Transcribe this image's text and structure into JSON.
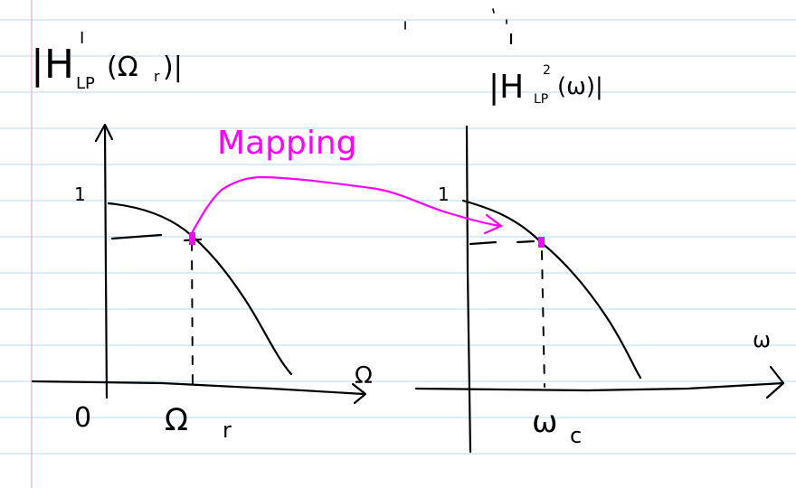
{
  "left_plot": {
    "y_label": "|H",
    "y_label_sup": "I",
    "y_label_sub": "LP",
    "y_label_arg": "(Ω",
    "y_label_arg_sub": "r",
    "y_label_close": ")|",
    "x_label": "Ω",
    "origin_label": "0",
    "y_tick_label": "1",
    "cutoff_label": "Ω",
    "cutoff_label_sub": "r"
  },
  "right_plot": {
    "y_label": "|H",
    "y_label_sup": "2",
    "y_label_sub": "LP",
    "y_label_arg": "(ω)|",
    "x_label": "ω",
    "y_tick_label": "1",
    "cutoff_label": "ω",
    "cutoff_label_sub": "c"
  },
  "mapping": {
    "label": "Mapping",
    "color": "#ff00ff"
  }
}
